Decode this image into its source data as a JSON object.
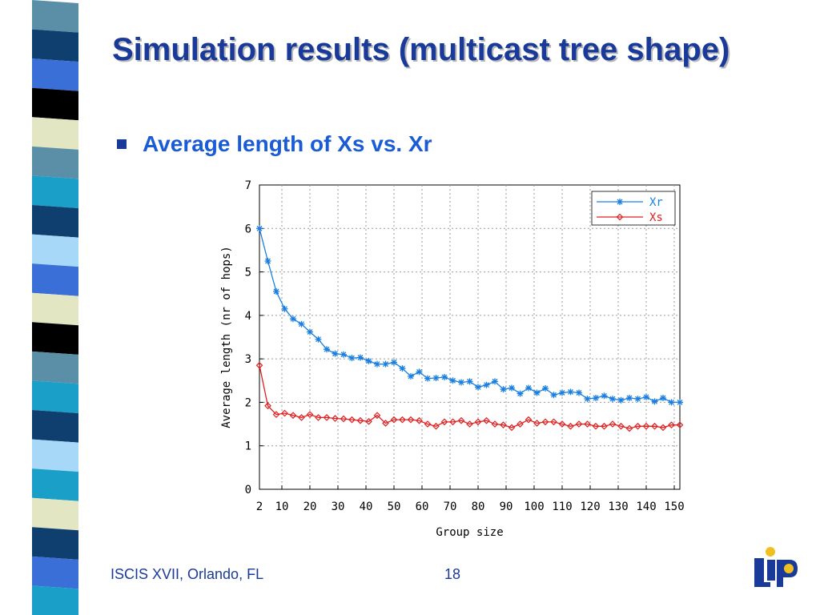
{
  "slide": {
    "title": "Simulation results (multicast tree shape)",
    "bullet": "Average length of Xs vs. Xr",
    "footer_left": "ISCIS XVII, Orlando, FL",
    "page_number": "18"
  },
  "decor": {
    "stripe_colors": [
      "#5b8fa8",
      "#0e3f6e",
      "#3a6fd8",
      "#000000",
      "#e3e6c2",
      "#5b8fa8",
      "#1aa0c8",
      "#0e3f6e",
      "#a8d8f8",
      "#3a6fd8",
      "#e3e6c2",
      "#000000",
      "#5b8fa8",
      "#1aa0c8",
      "#0e3f6e",
      "#a8d8f8",
      "#1aa0c8",
      "#e3e6c2",
      "#0e3f6e",
      "#3a6fd8",
      "#1aa0c8"
    ],
    "title_color": "#1a3a9a",
    "bullet_color": "#1a5bd6",
    "logo_color": "#1a3a9a",
    "logo_accent": "#f0c020"
  },
  "chart_data": {
    "type": "line",
    "xlabel": "Group size",
    "ylabel": "Average length (nr of hops)",
    "xlim": [
      2,
      152
    ],
    "ylim": [
      0,
      7
    ],
    "xticks": [
      2,
      10,
      20,
      30,
      40,
      50,
      60,
      70,
      80,
      90,
      100,
      110,
      120,
      130,
      140,
      150
    ],
    "yticks": [
      0,
      1,
      2,
      3,
      4,
      5,
      6,
      7
    ],
    "grid": true,
    "legend_position": "top-right",
    "series": [
      {
        "name": "Xr",
        "color": "#1a7fe0",
        "marker": "star",
        "x": [
          2,
          5,
          8,
          11,
          14,
          17,
          20,
          23,
          26,
          29,
          32,
          35,
          38,
          41,
          44,
          47,
          50,
          53,
          56,
          59,
          62,
          65,
          68,
          71,
          74,
          77,
          80,
          83,
          86,
          89,
          92,
          95,
          98,
          101,
          104,
          107,
          110,
          113,
          116,
          119,
          122,
          125,
          128,
          131,
          134,
          137,
          140,
          143,
          146,
          149,
          152
        ],
        "y": [
          6.0,
          5.25,
          4.55,
          4.15,
          3.92,
          3.8,
          3.62,
          3.45,
          3.22,
          3.12,
          3.1,
          3.02,
          3.03,
          2.95,
          2.88,
          2.88,
          2.92,
          2.78,
          2.6,
          2.7,
          2.55,
          2.56,
          2.58,
          2.5,
          2.46,
          2.48,
          2.35,
          2.4,
          2.48,
          2.3,
          2.33,
          2.2,
          2.33,
          2.22,
          2.32,
          2.17,
          2.22,
          2.24,
          2.22,
          2.08,
          2.1,
          2.15,
          2.08,
          2.05,
          2.1,
          2.08,
          2.12,
          2.02,
          2.1,
          2.0,
          2.0
        ]
      },
      {
        "name": "Xs",
        "color": "#e02020",
        "marker": "diamond",
        "x": [
          2,
          5,
          8,
          11,
          14,
          17,
          20,
          23,
          26,
          29,
          32,
          35,
          38,
          41,
          44,
          47,
          50,
          53,
          56,
          59,
          62,
          65,
          68,
          71,
          74,
          77,
          80,
          83,
          86,
          89,
          92,
          95,
          98,
          101,
          104,
          107,
          110,
          113,
          116,
          119,
          122,
          125,
          128,
          131,
          134,
          137,
          140,
          143,
          146,
          149,
          152
        ],
        "y": [
          2.85,
          1.92,
          1.72,
          1.75,
          1.7,
          1.65,
          1.72,
          1.65,
          1.65,
          1.63,
          1.62,
          1.6,
          1.58,
          1.56,
          1.7,
          1.52,
          1.6,
          1.6,
          1.6,
          1.58,
          1.5,
          1.45,
          1.55,
          1.55,
          1.58,
          1.5,
          1.55,
          1.58,
          1.5,
          1.48,
          1.42,
          1.5,
          1.6,
          1.52,
          1.55,
          1.55,
          1.5,
          1.45,
          1.5,
          1.5,
          1.45,
          1.45,
          1.5,
          1.45,
          1.4,
          1.45,
          1.45,
          1.45,
          1.42,
          1.48,
          1.48
        ]
      }
    ]
  }
}
